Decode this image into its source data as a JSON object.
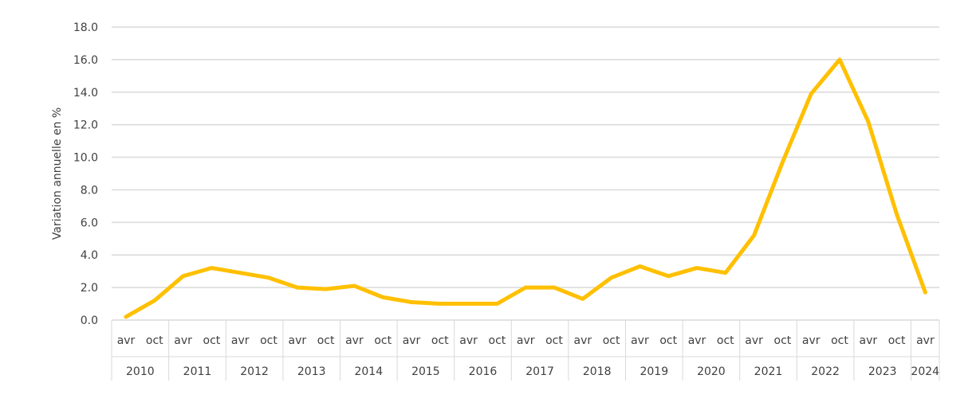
{
  "chart_data": {
    "type": "line",
    "title": "",
    "ylabel": "Variation annuelle en %",
    "xlabel": "",
    "ylim": [
      0,
      18
    ],
    "yticks": [
      "0.0",
      "2.0",
      "4.0",
      "6.0",
      "8.0",
      "10.0",
      "12.0",
      "14.0",
      "16.0",
      "18.0"
    ],
    "grid": true,
    "line_color": "#FFC000",
    "years": [
      "2010",
      "2011",
      "2012",
      "2013",
      "2014",
      "2015",
      "2016",
      "2017",
      "2018",
      "2019",
      "2020",
      "2021",
      "2022",
      "2023",
      "2024"
    ],
    "x": [
      "avr",
      "oct",
      "avr",
      "oct",
      "avr",
      "oct",
      "avr",
      "oct",
      "avr",
      "oct",
      "avr",
      "oct",
      "avr",
      "oct",
      "avr",
      "oct",
      "avr",
      "oct",
      "avr",
      "oct",
      "avr",
      "oct",
      "avr",
      "oct",
      "avr",
      "oct",
      "avr",
      "oct",
      "avr"
    ],
    "values": [
      0.2,
      1.2,
      2.7,
      3.2,
      2.9,
      2.6,
      2.0,
      1.9,
      2.1,
      1.4,
      1.1,
      1.0,
      1.0,
      1.0,
      2.0,
      2.0,
      1.3,
      2.6,
      3.3,
      2.7,
      3.2,
      2.9,
      5.2,
      9.7,
      13.9,
      16.0,
      12.2,
      6.5,
      1.7
    ]
  }
}
